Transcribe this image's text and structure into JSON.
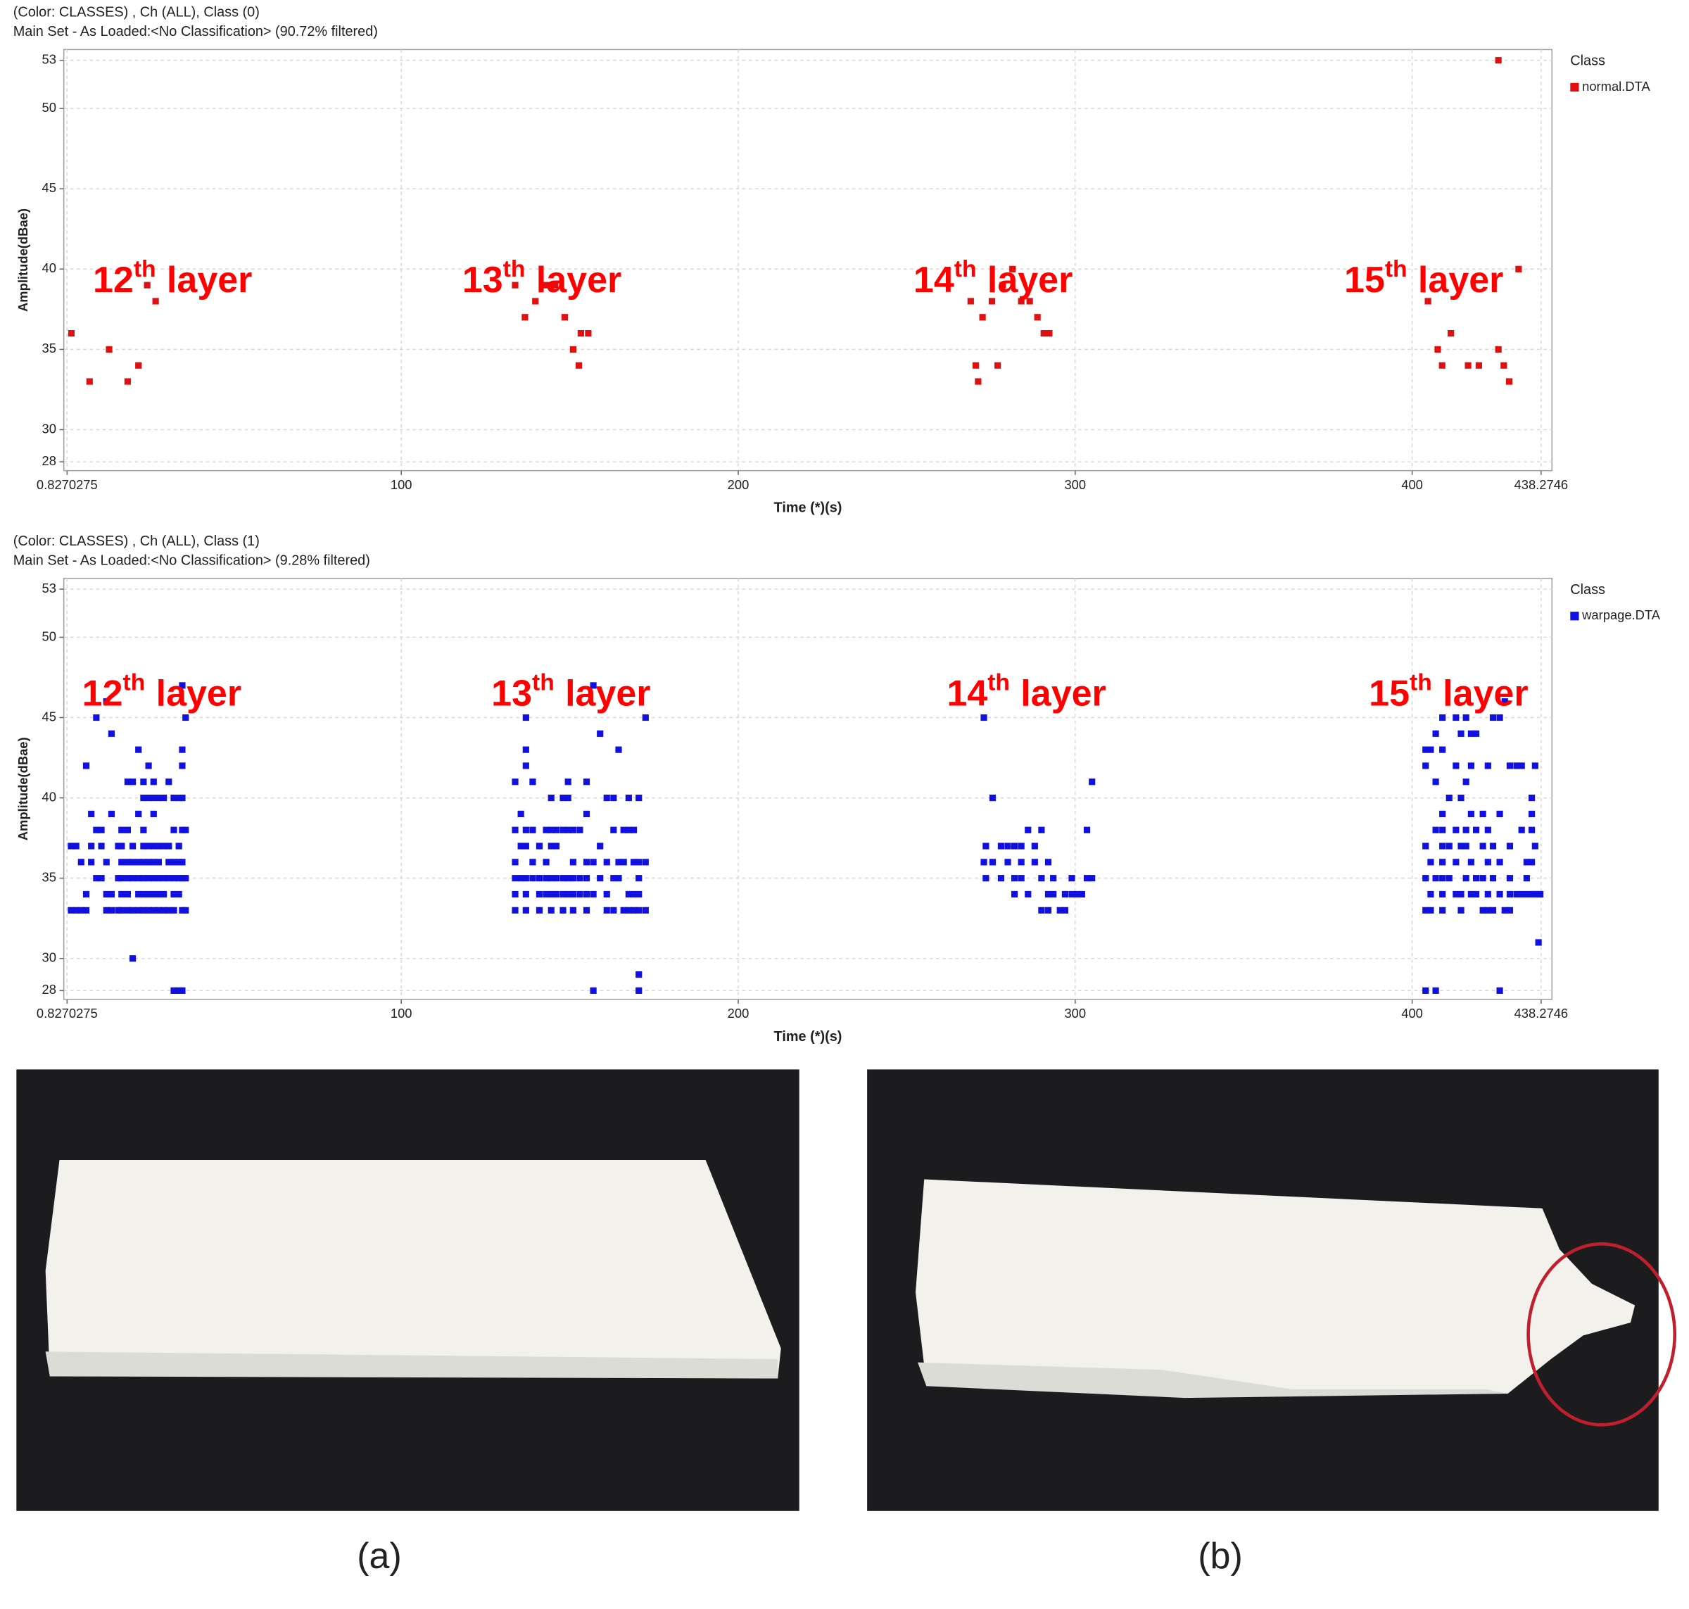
{
  "chart_data": [
    {
      "type": "scatter",
      "title": "(Color: CLASSES) , Ch (ALL), Class (0)",
      "subtitle": "Main Set - As Loaded:<No Classification> (90.72% filtered)",
      "xlabel": "Time (*)(s)",
      "ylabel": "Amplitude(dBae)",
      "xlim": [
        -0.15,
        441.5
      ],
      "ylim": [
        27.45,
        53.67
      ],
      "xticks": [
        0.8270275,
        100,
        200,
        300,
        400,
        438.2746
      ],
      "yticks": [
        28,
        30,
        35,
        40,
        45,
        50,
        53
      ],
      "grid": true,
      "legend_title": "Class",
      "annotations": [
        {
          "number": "12",
          "suffix": "th",
          "word": "layer"
        },
        {
          "number": "13",
          "suffix": "th",
          "word": "layer"
        },
        {
          "number": "14",
          "suffix": "th",
          "word": "layer"
        },
        {
          "number": "15",
          "suffix": "th",
          "word": "layer"
        }
      ],
      "series": [
        {
          "name": "normal.DTA",
          "color": "#e01010",
          "x": [
            2.1,
            7.5,
            13.3,
            18.8,
            22,
            24.6,
            27.1,
            133.8,
            136.7,
            139.8,
            143,
            145.6,
            148.5,
            151,
            152.7,
            153.3,
            155.5,
            269,
            270.5,
            271.2,
            272.5,
            275.3,
            277,
            278.5,
            281.4,
            284,
            286.5,
            288.8,
            290.7,
            292.3,
            404.7,
            407.6,
            408.9,
            411.5,
            416.6,
            419.8,
            425.6,
            425.6,
            427.2,
            428.8,
            431.6
          ],
          "values": [
            36,
            33,
            35,
            33,
            34,
            39,
            38,
            39,
            37,
            38,
            39,
            39,
            37,
            35,
            34,
            36,
            36,
            38,
            34,
            33,
            37,
            38,
            34,
            39,
            40,
            38,
            38,
            37,
            36,
            36,
            38,
            35,
            34,
            36,
            34,
            34,
            53,
            35,
            34,
            33,
            40
          ]
        }
      ]
    },
    {
      "type": "scatter",
      "title": "(Color: CLASSES) , Ch (ALL), Class (1)",
      "subtitle": "Main Set - As Loaded:<No Classification> (9.28% filtered)",
      "xlabel": "Time (*)(s)",
      "ylabel": "Amplitude(dBae)",
      "xlim": [
        -0.15,
        441.5
      ],
      "ylim": [
        27.45,
        53.67
      ],
      "xticks": [
        0.8270275,
        100,
        200,
        300,
        400,
        438.2746
      ],
      "yticks": [
        28,
        30,
        35,
        40,
        45,
        50,
        53
      ],
      "grid": true,
      "legend_title": "Class",
      "annotations": [
        {
          "number": "12",
          "suffix": "th",
          "word": "layer"
        },
        {
          "number": "13",
          "suffix": "th",
          "word": "layer"
        },
        {
          "number": "14",
          "suffix": "th",
          "word": "layer"
        },
        {
          "number": "15",
          "suffix": "th",
          "word": "layer"
        }
      ],
      "series": [
        {
          "name": "warpage.DTA",
          "color": "#1010e0",
          "x": [
            2,
            2,
            3.5,
            3.5,
            5,
            5,
            6.5,
            6.5,
            6.5,
            8,
            8,
            8,
            9.5,
            9.5,
            9.5,
            11,
            11,
            11,
            12.5,
            12.5,
            12.5,
            12.5,
            14,
            14,
            14,
            14,
            16,
            16,
            16,
            17,
            17,
            17,
            17,
            17,
            17,
            18.8,
            18.8,
            18.8,
            18.8,
            18.8,
            18.8,
            20.3,
            20.3,
            20.3,
            20.3,
            20.3,
            20.3,
            22,
            22,
            22,
            22,
            22,
            22,
            23.5,
            23.5,
            23.5,
            23.5,
            23.5,
            23.5,
            23.5,
            23.5,
            25,
            25,
            25,
            25,
            25,
            25,
            25,
            26.5,
            26.5,
            26.5,
            26.5,
            26.5,
            26.5,
            26.5,
            26.5,
            28,
            28,
            28,
            28,
            28,
            28,
            29.5,
            29.5,
            29.5,
            29.5,
            29.5,
            31,
            31,
            31,
            31,
            31,
            32.5,
            32.5,
            32.5,
            32.5,
            32.5,
            32.5,
            32.5,
            34,
            34,
            34,
            34,
            34,
            34,
            35,
            35,
            35,
            35,
            35,
            35,
            35,
            35,
            35,
            36,
            36,
            36,
            36,
            133.8,
            133.8,
            133.8,
            133.8,
            133.8,
            133.8,
            135.5,
            135.5,
            135.5,
            137,
            137,
            137,
            137,
            137,
            137,
            137,
            137,
            139,
            139,
            139,
            139,
            141,
            141,
            141,
            141,
            143,
            143,
            143,
            143,
            144.5,
            144.5,
            144.5,
            144.5,
            144.5,
            144.5,
            146,
            146,
            146,
            146,
            148,
            148,
            148,
            148,
            148,
            149.5,
            149.5,
            149.5,
            149.5,
            149.5,
            151,
            151,
            151,
            151,
            151,
            153,
            153,
            153,
            155,
            155,
            155,
            155,
            155,
            155,
            157,
            157,
            157,
            157,
            159,
            159,
            159,
            161,
            161,
            161,
            161,
            163,
            163,
            163,
            163,
            164.5,
            164.5,
            164.5,
            166,
            166,
            166,
            167.5,
            167.5,
            167.5,
            167.5,
            169,
            169,
            169,
            169,
            170.5,
            170.5,
            170.5,
            170.5,
            170.5,
            170.5,
            170.5,
            172.5,
            172.5,
            172.5,
            272.9,
            272.9,
            273.5,
            273.5,
            275.5,
            275.5,
            278,
            278,
            280,
            280,
            282,
            282,
            282,
            284,
            284,
            284,
            286,
            286,
            288,
            288,
            290,
            290,
            290,
            292,
            292,
            292,
            293.5,
            293.5,
            295.5,
            297,
            297,
            299,
            299,
            300.5,
            302,
            303.5,
            303.5,
            305,
            305,
            404,
            404,
            404,
            404,
            404,
            404,
            405.5,
            405.5,
            405.5,
            405.5,
            407,
            407,
            407,
            407,
            407,
            409,
            409,
            409,
            409,
            409,
            409,
            409,
            409,
            409,
            411,
            411,
            411,
            413,
            413,
            413,
            413,
            413,
            414.5,
            414.5,
            414.5,
            414.5,
            414.5,
            416,
            416,
            416,
            416,
            416,
            417.5,
            417.5,
            417.5,
            417.5,
            417.5,
            419,
            419,
            419,
            419,
            421,
            421,
            421,
            421,
            422.5,
            422.5,
            422.5,
            422.5,
            422.5,
            424,
            424,
            424,
            424,
            426,
            426,
            426,
            426,
            426,
            427.5,
            427.5,
            429,
            429,
            429,
            429,
            429,
            431,
            431,
            432.5,
            432.5,
            432.5,
            434,
            434,
            434,
            435.5,
            435.5,
            435.5,
            435.5,
            435.5,
            436.5,
            436.5,
            436.5,
            437.5,
            437.5,
            438
          ],
          "values": [
            37,
            33,
            37,
            33,
            36,
            33,
            42,
            34,
            33,
            39,
            37,
            36,
            45,
            38,
            35,
            38,
            37,
            35,
            46,
            36,
            34,
            33,
            44,
            39,
            34,
            33,
            37,
            35,
            33,
            38,
            37,
            36,
            35,
            34,
            33,
            41,
            38,
            36,
            35,
            34,
            33,
            41,
            37,
            36,
            35,
            33,
            30,
            43,
            39,
            36,
            35,
            34,
            33,
            41,
            40,
            38,
            37,
            36,
            35,
            34,
            33,
            42,
            40,
            37,
            36,
            35,
            34,
            33,
            41,
            40,
            39,
            37,
            36,
            35,
            34,
            33,
            40,
            37,
            36,
            35,
            34,
            33,
            40,
            37,
            35,
            34,
            33,
            41,
            37,
            36,
            35,
            33,
            40,
            38,
            36,
            35,
            34,
            33,
            28,
            40,
            37,
            36,
            35,
            34,
            28,
            47,
            43,
            42,
            40,
            38,
            36,
            35,
            33,
            28,
            45,
            38,
            35,
            33,
            41,
            38,
            36,
            35,
            34,
            33,
            39,
            37,
            35,
            45,
            43,
            42,
            38,
            37,
            35,
            34,
            33,
            41,
            38,
            36,
            35,
            37,
            35,
            34,
            33,
            38,
            36,
            35,
            34,
            40,
            38,
            37,
            35,
            34,
            33,
            38,
            37,
            35,
            34,
            40,
            38,
            35,
            34,
            33,
            41,
            40,
            38,
            35,
            34,
            38,
            36,
            35,
            34,
            33,
            38,
            35,
            34,
            41,
            39,
            36,
            35,
            34,
            33,
            47,
            36,
            34,
            28,
            44,
            37,
            35,
            40,
            36,
            34,
            33,
            40,
            38,
            35,
            33,
            43,
            36,
            35,
            38,
            36,
            33,
            40,
            38,
            34,
            33,
            38,
            36,
            34,
            33,
            40,
            36,
            35,
            34,
            33,
            29,
            28,
            45,
            36,
            33,
            45,
            36,
            37,
            35,
            40,
            36,
            37,
            35,
            37,
            36,
            37,
            35,
            34,
            37,
            36,
            35,
            38,
            34,
            37,
            36,
            38,
            35,
            33,
            36,
            34,
            33,
            35,
            34,
            33,
            34,
            33,
            35,
            34,
            34,
            34,
            38,
            35,
            41,
            35,
            43,
            42,
            37,
            35,
            33,
            28,
            43,
            36,
            34,
            33,
            44,
            41,
            38,
            35,
            28,
            45,
            43,
            39,
            38,
            37,
            36,
            35,
            34,
            33,
            40,
            37,
            35,
            45,
            42,
            38,
            36,
            34,
            44,
            40,
            37,
            34,
            33,
            45,
            41,
            38,
            37,
            35,
            44,
            42,
            39,
            36,
            34,
            44,
            38,
            35,
            34,
            39,
            37,
            35,
            33,
            42,
            38,
            36,
            34,
            33,
            45,
            37,
            35,
            33,
            45,
            39,
            36,
            34,
            28,
            46,
            33,
            42,
            37,
            35,
            34,
            33,
            42,
            34,
            42,
            38,
            34,
            36,
            35,
            34,
            40,
            39,
            38,
            36,
            34,
            42,
            37,
            34,
            31,
            34,
            34
          ]
        }
      ]
    }
  ],
  "captions": [
    "(a)",
    "(b)"
  ]
}
